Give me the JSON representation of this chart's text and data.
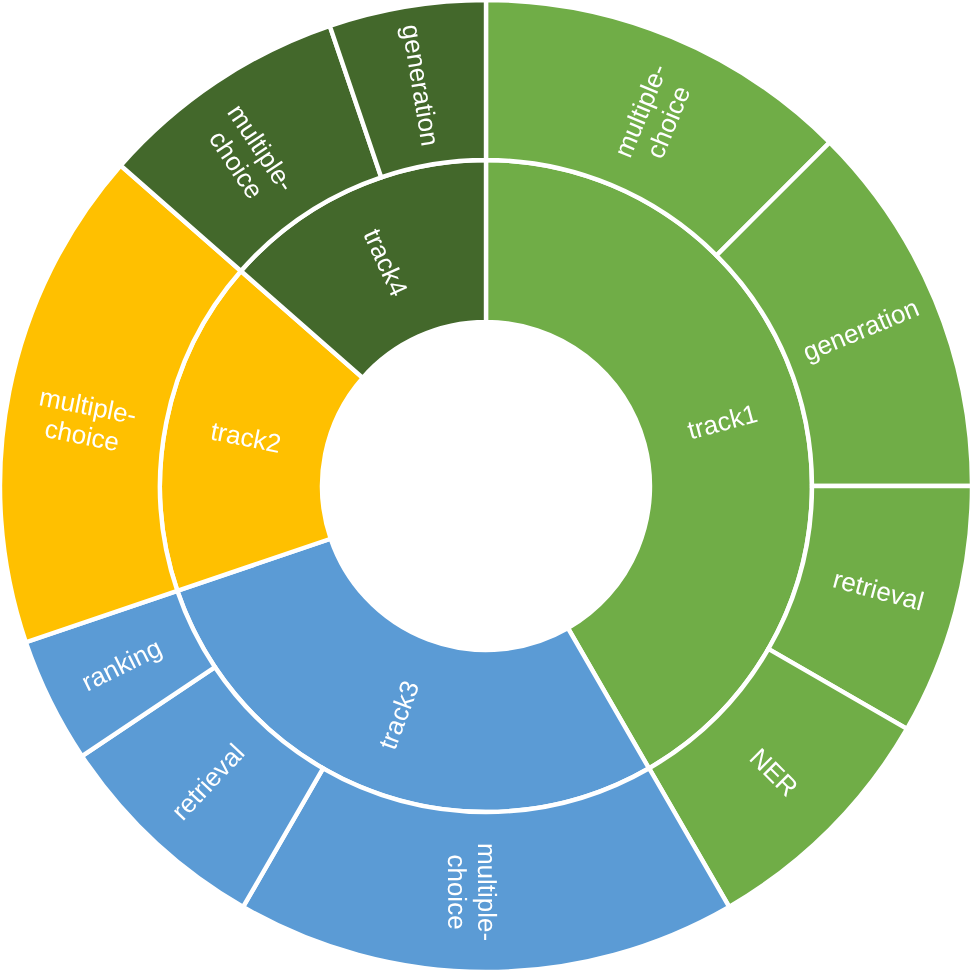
{
  "chart_data": [
    {
      "type": "donut",
      "categories": [
        "track1",
        "track3",
        "track2",
        "track4"
      ],
      "values": [
        41.67,
        28.12,
        16.67,
        13.54
      ],
      "colors": [
        "#70ad47",
        "#5b9bd5",
        "#ffc000",
        "#43682b"
      ]
    },
    {
      "type": "donut",
      "categories": [
        "multiple-choice",
        "generation",
        "retrieval",
        "NER",
        "multiple-choice",
        "retrieval",
        "ranking",
        "multiple-choice",
        "multiple-choice",
        "generation"
      ],
      "values": [
        12.5,
        12.5,
        8.33,
        8.33,
        16.67,
        7.29,
        4.17,
        16.67,
        8.33,
        5.21
      ],
      "colors": [
        "#70ad47",
        "#70ad47",
        "#70ad47",
        "#70ad47",
        "#5b9bd5",
        "#5b9bd5",
        "#5b9bd5",
        "#ffc000",
        "#43682b",
        "#43682b"
      ]
    }
  ]
}
